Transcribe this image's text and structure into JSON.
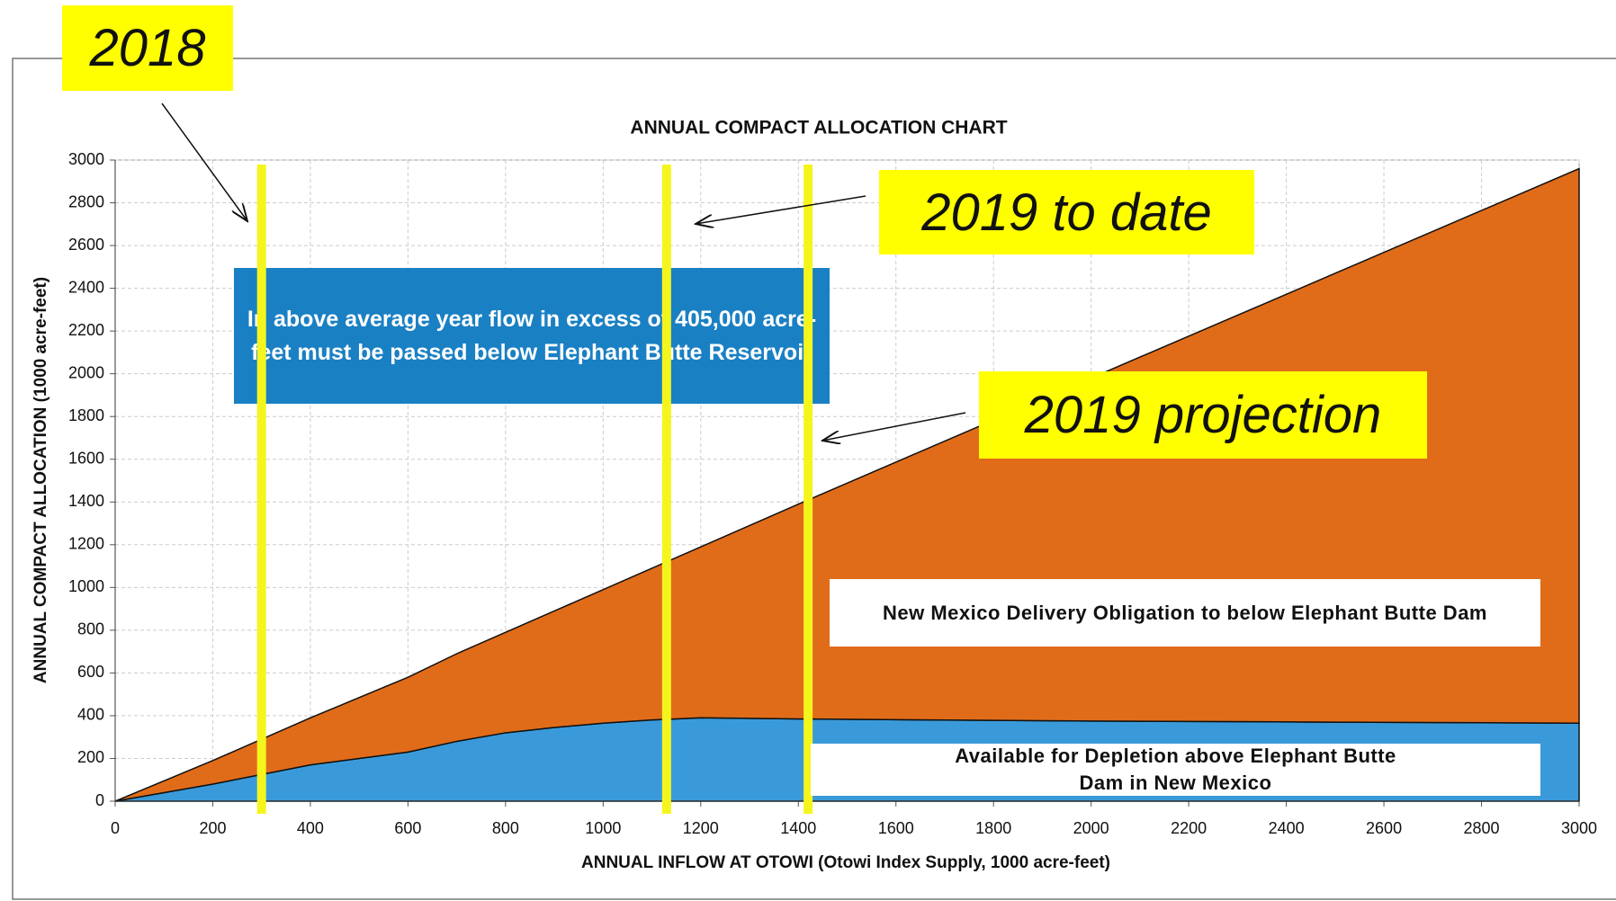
{
  "chart_data": {
    "type": "area",
    "title": "ANNUAL COMPACT ALLOCATION CHART",
    "x_label": "ANNUAL INFLOW AT OTOWI (Otowi Index Supply, 1000 acre-feet)",
    "y_label": "ANNUAL COMPACT ALLOCATION (1000 acre-feet)",
    "stacked": true,
    "x": [
      0,
      200,
      400,
      600,
      700,
      800,
      900,
      1000,
      1100,
      1200,
      1400,
      2000,
      2500,
      3000
    ],
    "series": [
      {
        "name": "Available for Depletion above Elephant Butte Dam in New Mexico",
        "color": "#3a9ad9",
        "values": [
          0,
          80,
          170,
          230,
          280,
          320,
          345,
          365,
          380,
          390,
          385,
          375,
          370,
          365
        ]
      },
      {
        "name": "New Mexico Delivery Obligation to below Elephant Butte Dam",
        "color": "#e06c1a",
        "values": [
          0,
          110,
          220,
          350,
          410,
          470,
          545,
          625,
          710,
          800,
          1005,
          1605,
          2100,
          2595
        ]
      }
    ],
    "xlim": [
      0,
      3000
    ],
    "xticks": [
      0,
      200,
      400,
      600,
      800,
      1000,
      1200,
      1400,
      1600,
      1800,
      2000,
      2200,
      2400,
      2600,
      2800,
      3000
    ],
    "ylim": [
      0,
      3000
    ],
    "yticks": [
      0,
      200,
      400,
      600,
      800,
      1000,
      1200,
      1400,
      1600,
      1800,
      2000,
      2200,
      2400,
      2600,
      2800,
      3000
    ],
    "grid": true,
    "note": "In above average year flow in excess of 405,000 acre-feet must be passed below Elephant Butte Reservoir",
    "markers": [
      {
        "label": "2018",
        "x": 300,
        "color": "#f5f51e"
      },
      {
        "label": "2019 to date",
        "x": 1130,
        "color": "#f5f51e"
      },
      {
        "label": "2019 projection",
        "x": 1420,
        "color": "#f5f51e"
      }
    ]
  }
}
